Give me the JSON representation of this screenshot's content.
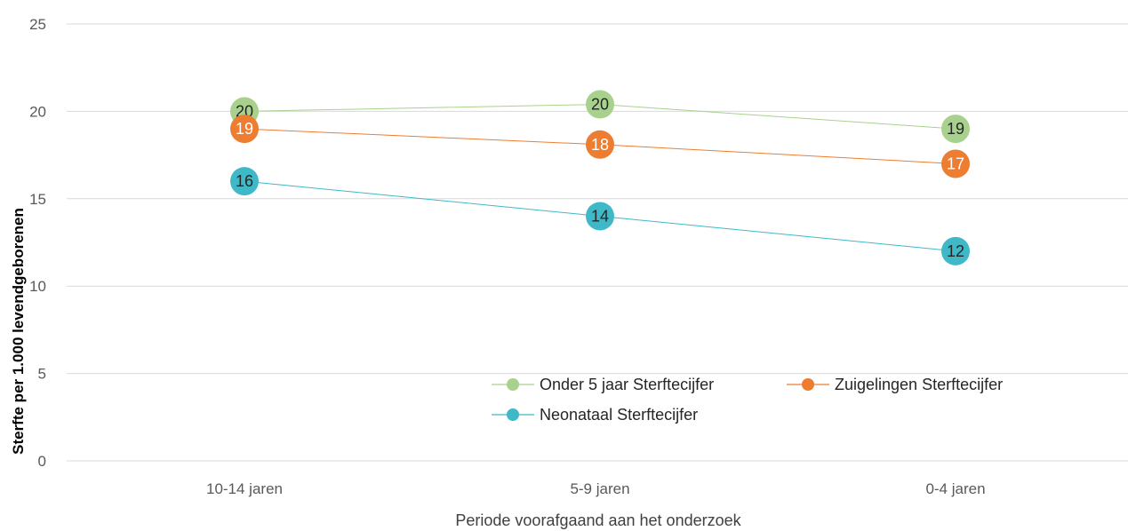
{
  "chart_data": {
    "type": "line",
    "categories": [
      "10-14 jaren",
      "5-9 jaren",
      "0-4 jaren"
    ],
    "series": [
      {
        "name": "Onder 5 jaar Sterftecijfer",
        "values": [
          20,
          20.4,
          19
        ],
        "labels": [
          "20",
          "20",
          "19"
        ],
        "color": "#a9d18e",
        "label_color": "#262626"
      },
      {
        "name": "Zuigelingen Sterftecijfer",
        "values": [
          19,
          18.1,
          17
        ],
        "labels": [
          "19",
          "18",
          "17"
        ],
        "color": "#ed7d31",
        "label_color": "#ffffff"
      },
      {
        "name": "Neonataal Sterftecijfer",
        "values": [
          16,
          14,
          12
        ],
        "labels": [
          "16",
          "14",
          "12"
        ],
        "color": "#3fb9c8",
        "label_color": "#262626"
      }
    ],
    "xlabel": "Periode voorafgaand aan het onderzoek",
    "ylabel": "Sterfte per 1.000 levendgeborenen",
    "ylim": [
      0,
      25
    ],
    "yticks": [
      "0",
      "5",
      "10",
      "15",
      "20",
      "25"
    ],
    "grid": true,
    "legend_position": "bottom-right"
  }
}
